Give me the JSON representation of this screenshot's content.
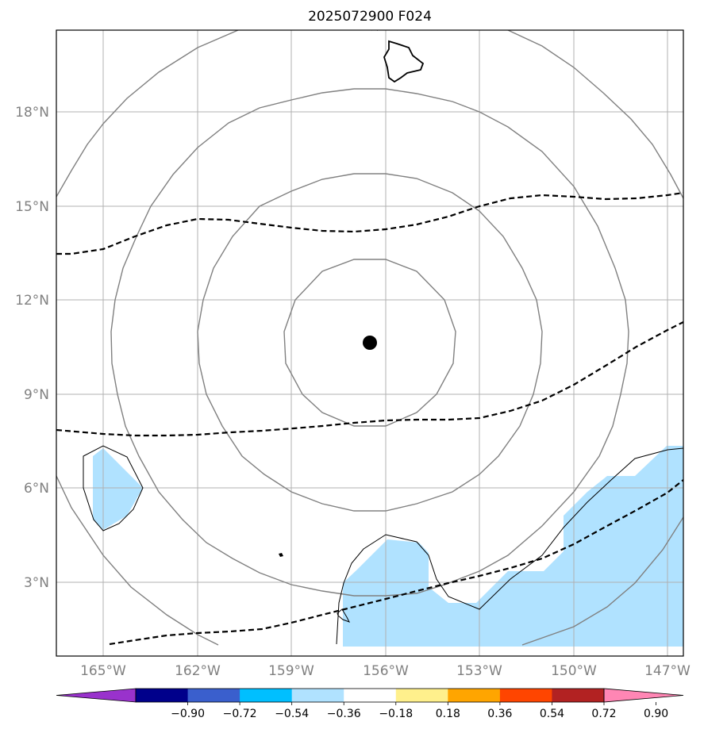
{
  "title": "2025072900 F024",
  "axes": {
    "lat_labels": [
      "18°N",
      "15°N",
      "12°N",
      "9°N",
      "6°N",
      "3°N"
    ],
    "lon_labels": [
      "165°W",
      "162°W",
      "159°W",
      "156°W",
      "153°W",
      "150°W",
      "147°W"
    ]
  },
  "colorbar": {
    "tick_labels": [
      "−0.90",
      "−0.72",
      "−0.54",
      "−0.36",
      "−0.18",
      "0.18",
      "0.36",
      "0.54",
      "0.72",
      "0.90"
    ],
    "colors": [
      "#9932cc",
      "#00008b",
      "#3a5fcd",
      "#00bfff",
      "#b0e2ff",
      "#ffffff",
      "#fff08c",
      "#ffa500",
      "#ff4500",
      "#b22222",
      "#ff86b4"
    ]
  },
  "colors": {
    "contour": "#808080",
    "dashed": "#000000",
    "fill_negative": "#b0e2ff",
    "grid": "#b0b0b0",
    "center_marker": "#000000"
  }
}
